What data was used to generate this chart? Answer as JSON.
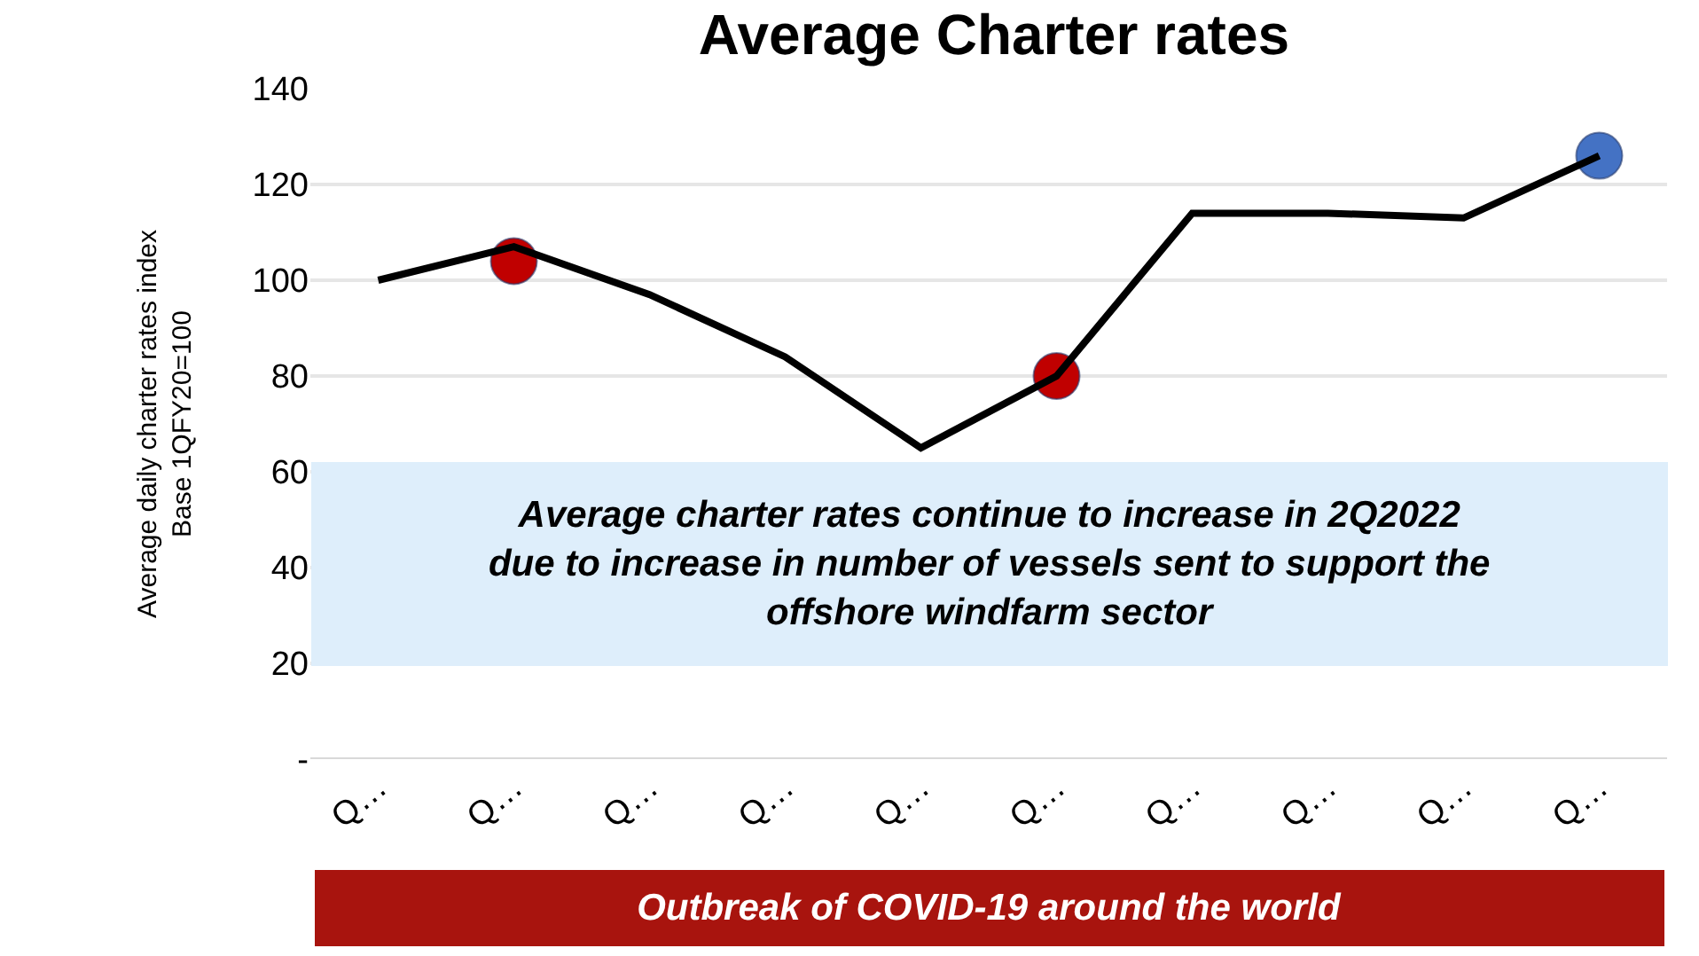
{
  "chart_data": {
    "type": "line",
    "title": "Average Charter rates",
    "ylabel": "Average daily charter rates index\nBase 1QFY20=100",
    "categories": [
      "Q…",
      "Q…",
      "Q…",
      "Q…",
      "Q…",
      "Q…",
      "Q…",
      "Q…",
      "Q…",
      "Q…"
    ],
    "series": [
      {
        "color": "#000000",
        "marker": "none",
        "values": [
          100,
          107,
          97,
          84,
          65,
          80,
          114,
          114,
          113,
          126
        ]
      },
      {
        "type": "scatter",
        "marker": "circle",
        "colors": [
          null,
          "#c00000",
          null,
          null,
          null,
          "#c00000",
          null,
          null,
          null,
          "#4472c4"
        ],
        "values": [
          null,
          104,
          null,
          null,
          null,
          80,
          null,
          null,
          null,
          126
        ]
      }
    ],
    "ylim": [
      0,
      140
    ],
    "yticks": [
      {
        "value": 0,
        "label": "-"
      },
      20,
      40,
      60,
      80,
      100,
      120,
      140
    ],
    "grid": "y",
    "legend": false,
    "annotations": [
      "Average charter rates continue to increase in 2Q2022\ndue to increase in number of vessels sent to support the\noffshore windfarm sector",
      "Outbreak of COVID-19 around the world"
    ]
  }
}
